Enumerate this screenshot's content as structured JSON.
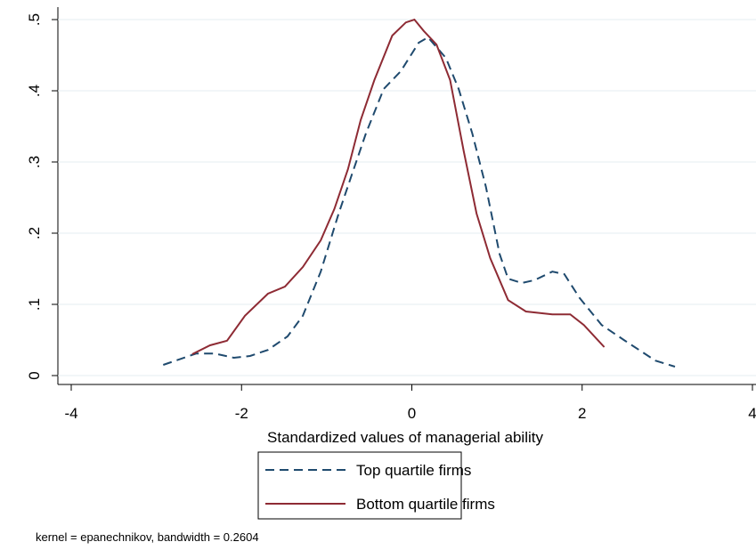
{
  "chart_data": {
    "type": "line",
    "xlabel": "Standardized values of managerial ability",
    "note": "kernel = epanechnikov, bandwidth = 0.2604",
    "xlim": [
      -4,
      4
    ],
    "xticks": [
      -4,
      -2,
      0,
      2,
      4
    ],
    "ylim": [
      0,
      0.5
    ],
    "yticks": [
      0,
      {
        "value": 0.1,
        "label": ".1"
      },
      {
        "value": 0.2,
        "label": ".2"
      },
      {
        "value": 0.3,
        "label": ".3"
      },
      {
        "value": 0.4,
        "label": ".4"
      },
      {
        "value": 0.5,
        "label": ".5"
      }
    ],
    "grid": true,
    "series": [
      {
        "name": "Top quartile firms",
        "color": "#1f4a6e",
        "dash": true,
        "x": [
          -2.92,
          -2.53,
          -2.32,
          -2.09,
          -1.9,
          -1.69,
          -1.46,
          -1.28,
          -1.07,
          -0.86,
          -0.7,
          -0.54,
          -0.33,
          -0.13,
          0.08,
          0.19,
          0.4,
          0.55,
          0.71,
          0.87,
          1.03,
          1.13,
          1.29,
          1.44,
          1.65,
          1.79,
          1.97,
          2.23,
          2.49,
          2.86,
          3.09
        ],
        "values": [
          0.015,
          0.031,
          0.031,
          0.025,
          0.0275,
          0.036,
          0.055,
          0.084,
          0.146,
          0.2275,
          0.284,
          0.34,
          0.4025,
          0.4275,
          0.4675,
          0.475,
          0.446,
          0.4025,
          0.34,
          0.265,
          0.171,
          0.136,
          0.13,
          0.134,
          0.146,
          0.1425,
          0.109,
          0.071,
          0.05,
          0.021,
          0.0125
        ]
      },
      {
        "name": "Bottom quartile firms",
        "color": "#8e2b34",
        "dash": false,
        "x": [
          -2.58,
          -2.37,
          -2.17,
          -1.96,
          -1.69,
          -1.49,
          -1.28,
          -1.07,
          -0.91,
          -0.75,
          -0.6,
          -0.44,
          -0.23,
          -0.07,
          0.03,
          0.14,
          0.29,
          0.45,
          0.61,
          0.76,
          0.92,
          1.13,
          1.34,
          1.65,
          1.86,
          2.02,
          2.26
        ],
        "values": [
          0.03,
          0.0425,
          0.049,
          0.084,
          0.115,
          0.125,
          0.1525,
          0.19,
          0.234,
          0.29,
          0.359,
          0.415,
          0.4775,
          0.496,
          0.5,
          0.484,
          0.465,
          0.415,
          0.315,
          0.2275,
          0.165,
          0.106,
          0.09,
          0.086,
          0.086,
          0.071,
          0.04
        ]
      }
    ]
  }
}
